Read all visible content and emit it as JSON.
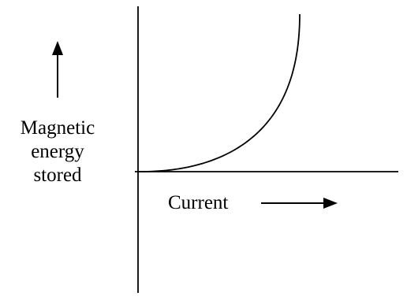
{
  "diagram": {
    "y_label_lines": [
      "Magnetic",
      "energy",
      "stored"
    ],
    "x_label": "Current",
    "curve_shape": "energy increases with square of current (U ∝ I²)"
  },
  "colors": {
    "ink": "#000000",
    "background": "#ffffff"
  }
}
